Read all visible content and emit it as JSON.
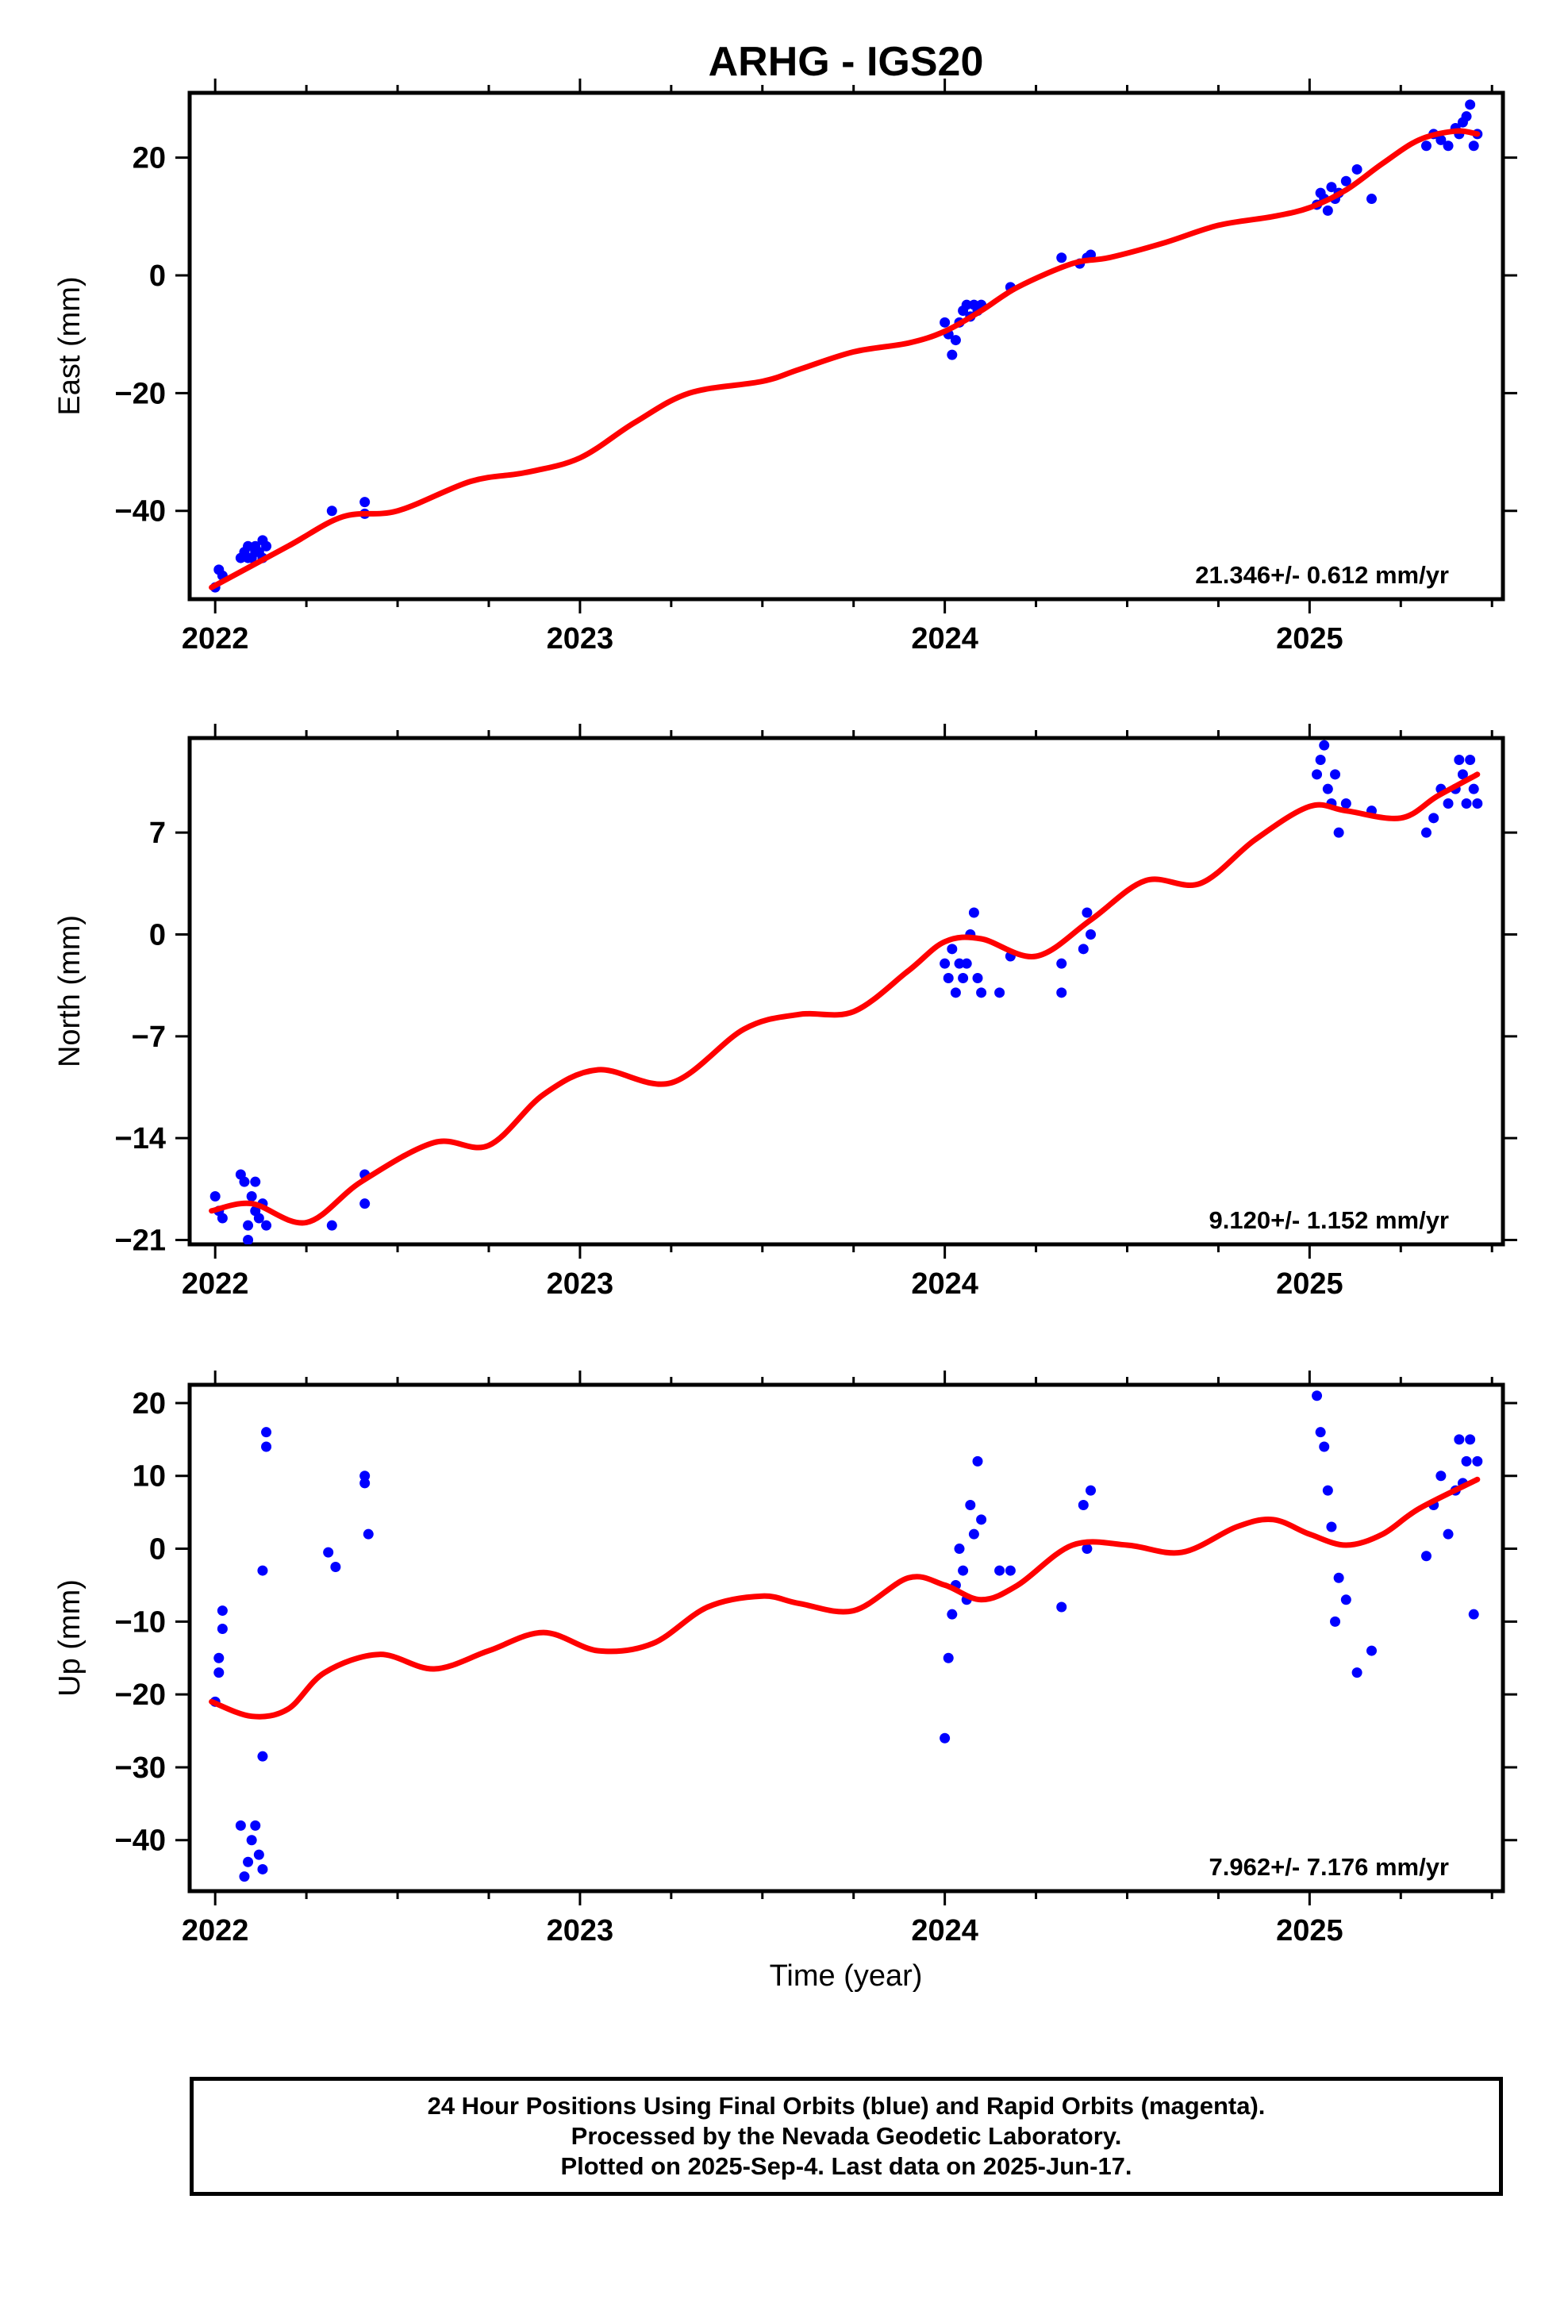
{
  "page": {
    "title": "ARHG - IGS20",
    "xlabel": "Time (year)"
  },
  "footer": {
    "line1": "24 Hour Positions Using Final Orbits (blue) and Rapid Orbits (magenta).",
    "line2": "Processed by the Nevada Geodetic Laboratory.",
    "line3": "Plotted on 2025-Sep-4. Last data on 2025-Jun-17."
  },
  "colors": {
    "points": "#0000ff",
    "fit": "#ff0000",
    "axes": "#000000"
  },
  "chart_data": [
    {
      "type": "scatter",
      "ylabel": "East (mm)",
      "rate_text": "21.346+/- 0.612 mm/yr",
      "xlim": [
        2021.93,
        2025.53
      ],
      "ylim": [
        -55,
        31
      ],
      "yticks": [
        20,
        0,
        -20,
        -40
      ],
      "ytick_labels": [
        "20",
        "0",
        "−20",
        "−40"
      ],
      "xticks": [
        2022,
        2023,
        2024,
        2025
      ],
      "xtick_labels": [
        "2022",
        "2023",
        "2024",
        "2025"
      ],
      "series": [
        {
          "kind": "points",
          "x": [
            2022.0,
            2022.01,
            2022.02,
            2022.07,
            2022.08,
            2022.09,
            2022.1,
            2022.11,
            2022.12,
            2022.13,
            2022.14,
            2022.09,
            2022.11,
            2022.13,
            2022.32,
            2022.41,
            2022.41,
            2024.0,
            2024.01,
            2024.02,
            2024.03,
            2024.04,
            2024.05,
            2024.06,
            2024.07,
            2024.08,
            2024.09,
            2024.1,
            2024.18,
            2024.32,
            2024.37,
            2024.39,
            2024.4,
            2025.02,
            2025.03,
            2025.04,
            2025.05,
            2025.06,
            2025.07,
            2025.08,
            2025.1,
            2025.13,
            2025.17,
            2025.32,
            2025.34,
            2025.36,
            2025.38,
            2025.4,
            2025.41,
            2025.42,
            2025.43,
            2025.44,
            2025.45,
            2025.46
          ],
          "y": [
            -53,
            -50,
            -51,
            -48,
            -47,
            -46,
            -48,
            -46,
            -47,
            -45,
            -46,
            -48,
            -47,
            -48,
            -40,
            -38.5,
            -40.5,
            -8,
            -10,
            -13.5,
            -11,
            -8,
            -6,
            -5,
            -7,
            -5,
            -6,
            -5,
            -2,
            3,
            2,
            3,
            3.5,
            12,
            14,
            13,
            11,
            15,
            13,
            14,
            16,
            18,
            13,
            22,
            24,
            23,
            22,
            25,
            24,
            26,
            27,
            29,
            22,
            24
          ]
        },
        {
          "kind": "fit",
          "x": [
            2021.99,
            2022.2,
            2022.35,
            2022.5,
            2022.7,
            2022.85,
            2023.0,
            2023.15,
            2023.3,
            2023.5,
            2023.6,
            2023.75,
            2023.9,
            2024.0,
            2024.1,
            2024.2,
            2024.35,
            2024.45,
            2024.6,
            2024.75,
            2024.9,
            2025.0,
            2025.1,
            2025.2,
            2025.3,
            2025.4,
            2025.46
          ],
          "y": [
            -53,
            -46,
            -41,
            -40,
            -35,
            -33.5,
            -31,
            -25,
            -20,
            -18,
            -16,
            -13,
            -11.5,
            -9.5,
            -6,
            -2,
            2,
            3,
            5.5,
            8.5,
            10,
            11.5,
            14.5,
            19,
            23,
            24.5,
            24
          ]
        }
      ]
    },
    {
      "type": "scatter",
      "ylabel": "North (mm)",
      "rate_text": "9.120+/- 1.152 mm/yr",
      "xlim": [
        2021.93,
        2025.53
      ],
      "ylim": [
        -21.3,
        13.5
      ],
      "yticks": [
        7,
        0,
        -7,
        -14,
        -21
      ],
      "ytick_labels": [
        "7",
        "0",
        "−7",
        "−14",
        "−21"
      ],
      "xticks": [
        2022,
        2023,
        2024,
        2025
      ],
      "xtick_labels": [
        "2022",
        "2023",
        "2024",
        "2025"
      ],
      "series": [
        {
          "kind": "points",
          "x": [
            2022.0,
            2022.01,
            2022.02,
            2022.07,
            2022.08,
            2022.09,
            2022.1,
            2022.11,
            2022.12,
            2022.13,
            2022.14,
            2022.09,
            2022.11,
            2022.32,
            2022.41,
            2022.41,
            2024.0,
            2024.01,
            2024.02,
            2024.03,
            2024.04,
            2024.05,
            2024.06,
            2024.07,
            2024.08,
            2024.09,
            2024.1,
            2024.15,
            2024.18,
            2024.32,
            2024.32,
            2024.38,
            2024.39,
            2024.4,
            2025.02,
            2025.03,
            2025.04,
            2025.05,
            2025.06,
            2025.07,
            2025.08,
            2025.1,
            2025.17,
            2025.32,
            2025.34,
            2025.36,
            2025.38,
            2025.4,
            2025.41,
            2025.42,
            2025.43,
            2025.44,
            2025.45,
            2025.46
          ],
          "y": [
            -18,
            -19,
            -19.5,
            -16.5,
            -17,
            -20,
            -18,
            -19,
            -19.5,
            -18.5,
            -20,
            -21,
            -17,
            -20,
            -16.5,
            -18.5,
            -2,
            -3,
            -1,
            -4,
            -2,
            -3,
            -2,
            0,
            1.5,
            -3,
            -4,
            -4,
            -1.5,
            -4,
            -2,
            -1,
            1.5,
            0,
            11,
            12,
            13,
            10,
            9,
            11,
            7,
            9,
            8.5,
            7,
            8,
            10,
            9,
            10,
            12,
            11,
            9,
            12,
            10,
            9
          ]
        },
        {
          "kind": "fit",
          "x": [
            2021.99,
            2022.1,
            2022.25,
            2022.4,
            2022.6,
            2022.75,
            2022.9,
            2023.05,
            2023.25,
            2023.45,
            2023.6,
            2023.75,
            2023.9,
            2024.0,
            2024.1,
            2024.25,
            2024.4,
            2024.55,
            2024.7,
            2024.85,
            2025.0,
            2025.1,
            2025.25,
            2025.35,
            2025.46
          ],
          "y": [
            -19,
            -18.5,
            -19.8,
            -17,
            -14.3,
            -14.5,
            -11,
            -9.3,
            -10.2,
            -6.5,
            -5.5,
            -5.3,
            -2.5,
            -0.5,
            -0.3,
            -1.5,
            1,
            3.7,
            3.5,
            6.5,
            8.8,
            8.5,
            8,
            9.5,
            11
          ]
        }
      ]
    },
    {
      "type": "scatter",
      "ylabel": "Up (mm)",
      "rate_text": "7.962+/- 7.176 mm/yr",
      "xlim": [
        2021.93,
        2025.53
      ],
      "ylim": [
        -47,
        22.5
      ],
      "yticks": [
        20,
        10,
        0,
        -10,
        -20,
        -30,
        -40
      ],
      "ytick_labels": [
        "20",
        "10",
        "0",
        "−10",
        "−20",
        "−30",
        "−40"
      ],
      "xticks": [
        2022,
        2023,
        2024,
        2025
      ],
      "xtick_labels": [
        "2022",
        "2023",
        "2024",
        "2025"
      ],
      "series": [
        {
          "kind": "points",
          "x": [
            2022.0,
            2022.01,
            2022.01,
            2022.02,
            2022.02,
            2022.07,
            2022.08,
            2022.09,
            2022.1,
            2022.11,
            2022.12,
            2022.13,
            2022.13,
            2022.14,
            2022.14,
            2022.13,
            2022.31,
            2022.33,
            2022.41,
            2022.41,
            2022.42,
            2024.0,
            2024.01,
            2024.02,
            2024.03,
            2024.04,
            2024.05,
            2024.06,
            2024.07,
            2024.08,
            2024.09,
            2024.1,
            2024.15,
            2024.18,
            2024.32,
            2024.38,
            2024.39,
            2024.4,
            2025.02,
            2025.03,
            2025.04,
            2025.05,
            2025.06,
            2025.07,
            2025.08,
            2025.1,
            2025.13,
            2025.17,
            2025.32,
            2025.34,
            2025.36,
            2025.38,
            2025.4,
            2025.41,
            2025.42,
            2025.43,
            2025.44,
            2025.45,
            2025.46
          ],
          "y": [
            -21,
            -15,
            -17,
            -11,
            -8.5,
            -38,
            -45,
            -43,
            -40,
            -38,
            -42,
            -44,
            -3,
            14,
            16,
            -28.5,
            -0.5,
            -2.5,
            9,
            10,
            2,
            -26,
            -15,
            -9,
            -5,
            0,
            -3,
            -7,
            6,
            2,
            12,
            4,
            -3,
            -3,
            -8,
            6,
            0,
            8,
            21,
            16,
            14,
            8,
            3,
            -10,
            -4,
            -7,
            -17,
            -14,
            -1,
            6,
            10,
            2,
            8,
            15,
            9,
            12,
            15,
            -9,
            12
          ]
        },
        {
          "kind": "fit",
          "x": [
            2021.99,
            2022.1,
            2022.2,
            2022.3,
            2022.45,
            2022.6,
            2022.75,
            2022.9,
            2023.05,
            2023.2,
            2023.35,
            2023.5,
            2023.6,
            2023.75,
            2023.9,
            2024.0,
            2024.1,
            2024.2,
            2024.35,
            2024.5,
            2024.65,
            2024.8,
            2024.9,
            2025.0,
            2025.1,
            2025.2,
            2025.3,
            2025.46
          ],
          "y": [
            -21,
            -23,
            -22,
            -17,
            -14.5,
            -16.5,
            -14,
            -11.5,
            -14,
            -13,
            -8,
            -6.5,
            -7.5,
            -8.5,
            -4,
            -5,
            -7,
            -5,
            0.5,
            0.5,
            -0.5,
            3,
            4,
            2,
            0.5,
            2,
            5.5,
            9.5
          ]
        }
      ]
    }
  ]
}
